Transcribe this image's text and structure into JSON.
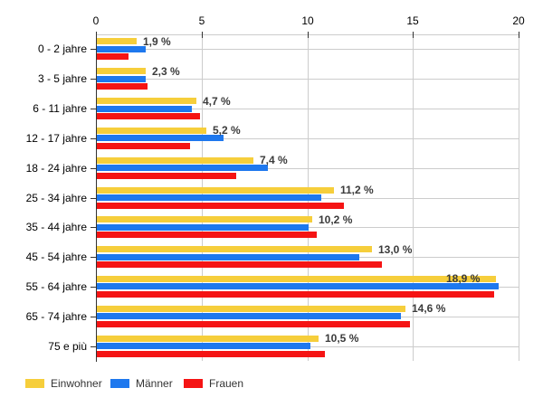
{
  "chart_data": {
    "type": "bar",
    "orientation": "horizontal",
    "title": "",
    "xlabel": "",
    "ylabel": "",
    "xlim": [
      0,
      20
    ],
    "x_ticks": [
      0,
      5,
      10,
      15,
      20
    ],
    "grid": true,
    "grid_color": "#cccccc",
    "axis_color": "#333333",
    "legend_position": "bottom",
    "categories": [
      "0 - 2 jahre",
      "3 - 5 jahre",
      "6 - 11 jahre",
      "12 - 17 jahre",
      "18 - 24 jahre",
      "25 - 34 jahre",
      "35 - 44 jahre",
      "45 - 54 jahre",
      "55 - 64 jahre",
      "65 - 74 jahre",
      "75 e più"
    ],
    "series": [
      {
        "name": "Einwohner",
        "color": "#F6CE3B",
        "values": [
          1.9,
          2.3,
          4.7,
          5.2,
          7.4,
          11.2,
          10.2,
          13.0,
          18.9,
          14.6,
          10.5
        ]
      },
      {
        "name": "Männer",
        "color": "#1E78EE",
        "values": [
          2.3,
          2.3,
          4.5,
          6.0,
          8.1,
          10.6,
          10.0,
          12.4,
          19.0,
          14.4,
          10.1
        ]
      },
      {
        "name": "Frauen",
        "color": "#F51414",
        "values": [
          1.5,
          2.4,
          4.9,
          4.4,
          6.6,
          11.7,
          10.4,
          13.5,
          18.8,
          14.8,
          10.8
        ]
      }
    ],
    "data_labels": [
      "1,9 %",
      "2,3 %",
      "4,7 %",
      "5,2 %",
      "7,4 %",
      "11,2 %",
      "10,2 %",
      "13,0 %",
      "18,9 %",
      "14,6 %",
      "10,5 %"
    ],
    "x_tick_labels": [
      "0",
      "5",
      "10",
      "15",
      "20"
    ]
  },
  "legend": {
    "items": [
      {
        "label": "Einwohner",
        "color": "#F6CE3B"
      },
      {
        "label": "Männer",
        "color": "#1E78EE"
      },
      {
        "label": "Frauen",
        "color": "#F51414"
      }
    ]
  }
}
